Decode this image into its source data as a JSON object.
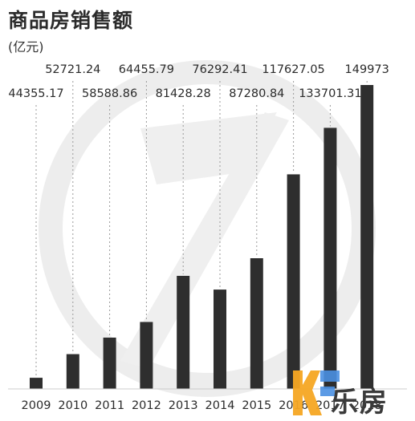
{
  "chart_data": {
    "type": "bar",
    "title": "商品房销售额",
    "subtitle": "(亿元)",
    "categories": [
      "2009",
      "2010",
      "2011",
      "2012",
      "2013",
      "2014",
      "2015",
      "2016",
      "2017",
      "2018"
    ],
    "values": [
      44355.17,
      52721.24,
      58588.86,
      64455.79,
      81428.28,
      76292.41,
      87280.84,
      117627.05,
      133701.31,
      149973
    ],
    "value_labels": [
      "44355.17",
      "52721.24",
      "58588.86",
      "64455.79",
      "81428.28",
      "76292.41",
      "87280.84",
      "117627.05",
      "133701.31",
      "149973"
    ],
    "tick_labels": [
      "2009",
      "2010",
      "2011",
      "2012",
      "2013",
      "2014",
      "2015",
      "2016",
      "2017",
      "2018"
    ],
    "grid": false,
    "bar_color": "#2e2e2e",
    "watermark_color": "#ececec"
  },
  "logo": {
    "text": "乐房",
    "accent_color": "#f5a623",
    "secondary_color": "#4a90e2"
  }
}
